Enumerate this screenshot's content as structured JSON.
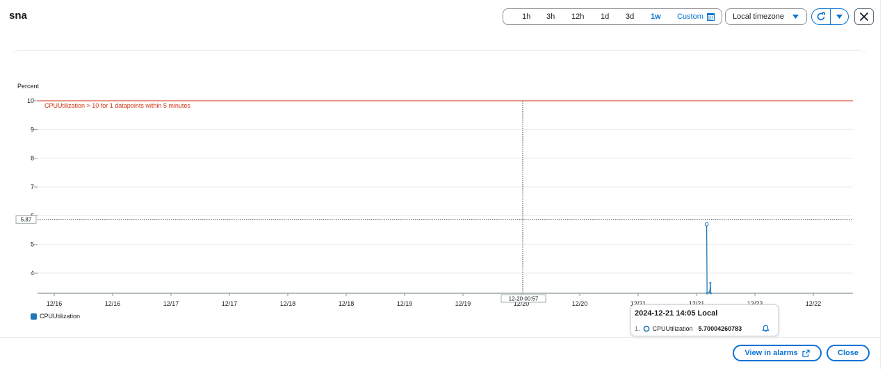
{
  "header": {
    "title": "sna",
    "ranges": [
      "1h",
      "3h",
      "12h",
      "1d",
      "3d",
      "1w"
    ],
    "active_range": "1w",
    "custom_label": "Custom",
    "timezone": "Local timezone"
  },
  "chart_data": {
    "type": "line",
    "ylabel": "Percent",
    "yticks": [
      "4",
      "5",
      "6",
      "7",
      "8",
      "9",
      "10"
    ],
    "ylim": [
      3.3,
      10
    ],
    "xticks": [
      "12/16",
      "12/16",
      "12/17",
      "12/17",
      "12/18",
      "12/18",
      "12/19",
      "12/19",
      "12/20",
      "12/20",
      "12/21",
      "12/21",
      "12/22",
      "12/22"
    ],
    "series": [
      {
        "name": "CPUUtilization",
        "color": "#1f77b4",
        "points": [
          {
            "x": "2024-12-21 14:05",
            "y": 5.70004260783
          },
          {
            "x": "2024-12-21 14:10",
            "y": 3.3
          },
          {
            "x": "2024-12-21 14:45",
            "y": 3.35
          },
          {
            "x": "2024-12-21 14:50",
            "y": 3.65
          },
          {
            "x": "2024-12-21 14:55",
            "y": 3.3
          }
        ]
      }
    ],
    "threshold": {
      "value": 10,
      "label": "CPUUtilization > 10 for 1 datapoints within 5 minutes",
      "color": "#d13212"
    },
    "crosshair": {
      "x_label": "12-20 00:57",
      "y_label": "5.87"
    },
    "grid": true,
    "legend_position": "bottom-left"
  },
  "legend": {
    "label": "CPUUtilization"
  },
  "tooltip": {
    "title": "2024-12-21 14:05 Local",
    "index": "1.",
    "metric": "CPUUtilization",
    "value": "5.70004260783"
  },
  "footer": {
    "view_alarms_label": "View in alarms",
    "close_label": "Close"
  }
}
